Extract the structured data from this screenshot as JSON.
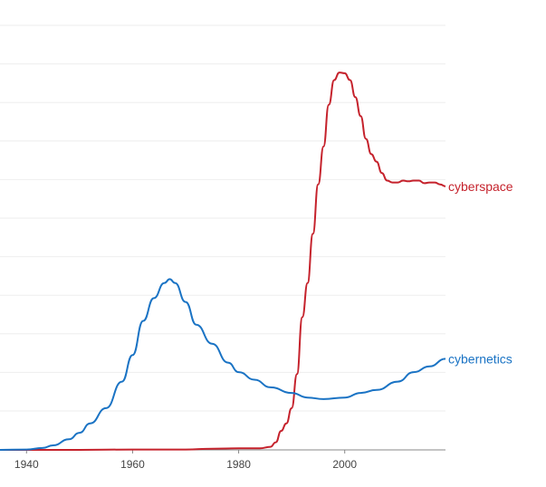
{
  "chart_data": {
    "type": "line",
    "title": "",
    "xlabel": "",
    "ylabel": "",
    "xlim": [
      1935,
      2019
    ],
    "ylim": [
      0,
      1
    ],
    "grid": true,
    "x_ticks": [
      "1940",
      "1960",
      "1980",
      "2000"
    ],
    "series": [
      {
        "name": "cyberspace",
        "color": "#c5222c",
        "x": [
          1935,
          1940,
          1950,
          1960,
          1970,
          1975,
          1980,
          1984,
          1986,
          1987,
          1988,
          1989,
          1990,
          1991,
          1992,
          1993,
          1994,
          1995,
          1996,
          1997,
          1998,
          1999,
          2000,
          2001,
          2002,
          2003,
          2004,
          2005,
          2006,
          2007,
          2008,
          2009,
          2010,
          2011,
          2012,
          2013,
          2014,
          2015,
          2016,
          2017,
          2018,
          2019
        ],
        "y": [
          0.0,
          0.0,
          0.0,
          0.001,
          0.001,
          0.003,
          0.004,
          0.004,
          0.008,
          0.02,
          0.05,
          0.07,
          0.11,
          0.2,
          0.35,
          0.44,
          0.57,
          0.7,
          0.8,
          0.91,
          0.975,
          0.995,
          0.993,
          0.975,
          0.93,
          0.88,
          0.82,
          0.78,
          0.76,
          0.73,
          0.71,
          0.705,
          0.705,
          0.71,
          0.708,
          0.71,
          0.71,
          0.703,
          0.705,
          0.705,
          0.7,
          0.695
        ]
      },
      {
        "name": "cybernetics",
        "color": "#1a73c4",
        "x": [
          1935,
          1940,
          1943,
          1945,
          1948,
          1950,
          1952,
          1955,
          1958,
          1960,
          1962,
          1964,
          1966,
          1967,
          1968,
          1970,
          1972,
          1975,
          1978,
          1980,
          1983,
          1986,
          1990,
          1993,
          1996,
          2000,
          2003,
          2006,
          2010,
          2013,
          2016,
          2019
        ],
        "y": [
          0.0,
          0.001,
          0.005,
          0.012,
          0.028,
          0.045,
          0.07,
          0.11,
          0.18,
          0.25,
          0.34,
          0.4,
          0.44,
          0.45,
          0.44,
          0.39,
          0.33,
          0.28,
          0.23,
          0.205,
          0.185,
          0.165,
          0.15,
          0.138,
          0.134,
          0.138,
          0.15,
          0.158,
          0.18,
          0.205,
          0.22,
          0.24
        ]
      }
    ]
  }
}
